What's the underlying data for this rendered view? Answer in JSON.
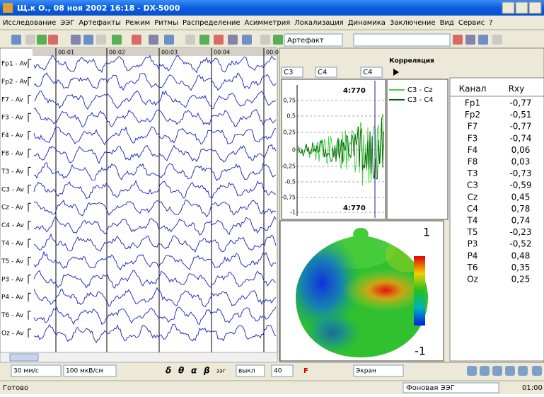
{
  "window": {
    "title": "Щ.к О., 08 ноя 2002 16:18 - DX-5000"
  },
  "menu": [
    "Исследование",
    "ЭЭГ",
    "Артефакты",
    "Режим",
    "Ритмы",
    "Распределение",
    "Асимметрия",
    "Локализация",
    "Динамика",
    "Заключение",
    "Вид",
    "Сервис",
    "?"
  ],
  "toolbar": {
    "artifact": "Артефакт"
  },
  "eeg": {
    "time_marks": [
      "00:01",
      "00:02",
      "00:03",
      "00:04",
      "00:0"
    ],
    "channels": [
      "Fp1 - Av",
      "Fp2 - Av",
      "F7 - Av",
      "F3 - Av",
      "F4 - Av",
      "F8 - Av",
      "T3 - Av",
      "C3 - Av",
      "Cz - Av",
      "C4 - Av",
      "T4 - Av",
      "T5 - Av",
      "P3 - Av",
      "P4 - Av",
      "T6 - Av",
      "Oz - Av"
    ]
  },
  "correlation": {
    "title": "Корреляция",
    "selects": [
      "C3",
      "C4",
      "C4"
    ],
    "cursor_labels": [
      "4:770",
      "4:770"
    ],
    "yticks": [
      "0,75",
      "0,5",
      "0,25",
      "0",
      "-0,25",
      "-0,5",
      "-0,75",
      "-1"
    ],
    "legend": [
      "C3 - Cz",
      "C3 - C4"
    ]
  },
  "map": {
    "max_label": "1",
    "min_label": "-1"
  },
  "table": {
    "headers": [
      "Канал",
      "Rxy"
    ],
    "rows": [
      [
        "Fp1",
        "-0,77"
      ],
      [
        "Fp2",
        "-0,51"
      ],
      [
        "F7",
        "-0,77"
      ],
      [
        "F3",
        "-0,74"
      ],
      [
        "F4",
        "0,06"
      ],
      [
        "F8",
        "0,03"
      ],
      [
        "T3",
        "-0,73"
      ],
      [
        "C3",
        "-0,59"
      ],
      [
        "Cz",
        "0,45"
      ],
      [
        "C4",
        "0,78"
      ],
      [
        "T4",
        "0,74"
      ],
      [
        "T5",
        "-0,23"
      ],
      [
        "P3",
        "-0,52"
      ],
      [
        "P4",
        "0,48"
      ],
      [
        "T6",
        "0,35"
      ],
      [
        "Oz",
        "0,25"
      ]
    ]
  },
  "bottom_toolbar": {
    "speed": "30 мм/с",
    "sensitivity": "100 мкВ/см",
    "rhythms": [
      "δ",
      "θ",
      "α",
      "β"
    ],
    "eeg": "ээг",
    "filter": "выкл",
    "value": "40",
    "f": "F",
    "screen": "Экран"
  },
  "status": {
    "text": "Готово",
    "mode": "Фоновая ЭЭГ",
    "time": "01:00"
  }
}
